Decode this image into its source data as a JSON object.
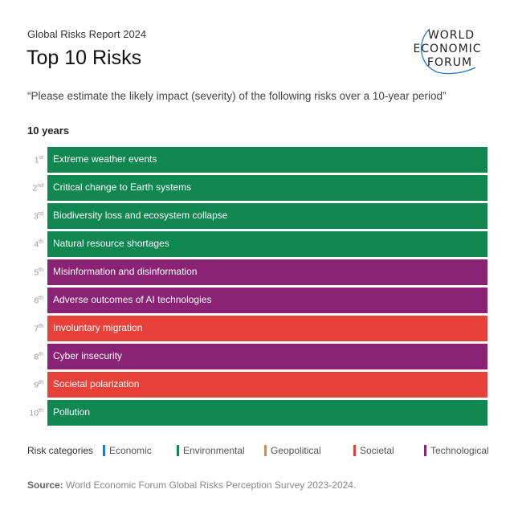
{
  "header": {
    "subtitle": "Global Risks Report 2024",
    "title": "Top 10 Risks",
    "logo_text": "WORLD ECONOMIC FORUM"
  },
  "question": "“Please estimate the likely impact (severity) of the following risks over a 10-year period”",
  "period": "10 years",
  "colors": {
    "Economic": "#1f7ac8",
    "Environmental": "#118750",
    "Geopolitical": "#ec843a",
    "Societal": "#e8413a",
    "Technological": "#8a2374"
  },
  "chart_data": {
    "type": "table",
    "title": "Top 10 Risks",
    "columns": [
      "rank",
      "risk",
      "category"
    ],
    "rows": [
      {
        "rank": "1",
        "suffix": "st",
        "risk": "Extreme weather events",
        "category": "Environmental"
      },
      {
        "rank": "2",
        "suffix": "nd",
        "risk": "Critical change to Earth systems",
        "category": "Environmental"
      },
      {
        "rank": "3",
        "suffix": "rd",
        "risk": "Biodiversity loss and ecosystem collapse",
        "category": "Environmental"
      },
      {
        "rank": "4",
        "suffix": "th",
        "risk": "Natural resource shortages",
        "category": "Environmental"
      },
      {
        "rank": "5",
        "suffix": "th",
        "risk": "Misinformation and disinformation",
        "category": "Technological"
      },
      {
        "rank": "6",
        "suffix": "th",
        "risk": "Adverse outcomes of AI technologies",
        "category": "Technological"
      },
      {
        "rank": "7",
        "suffix": "th",
        "risk": "Involuntary migration",
        "category": "Societal"
      },
      {
        "rank": "8",
        "suffix": "th",
        "risk": "Cyber insecurity",
        "category": "Technological"
      },
      {
        "rank": "9",
        "suffix": "th",
        "risk": "Societal polarization",
        "category": "Societal"
      },
      {
        "rank": "10",
        "suffix": "th",
        "risk": "Pollution",
        "category": "Environmental"
      }
    ]
  },
  "legend": {
    "label": "Risk categories",
    "items": [
      "Economic",
      "Environmental",
      "Geopolitical",
      "Societal",
      "Technological"
    ]
  },
  "source": {
    "label": "Source:",
    "text": " World Economic Forum Global Risks Perception Survey 2023-2024."
  }
}
